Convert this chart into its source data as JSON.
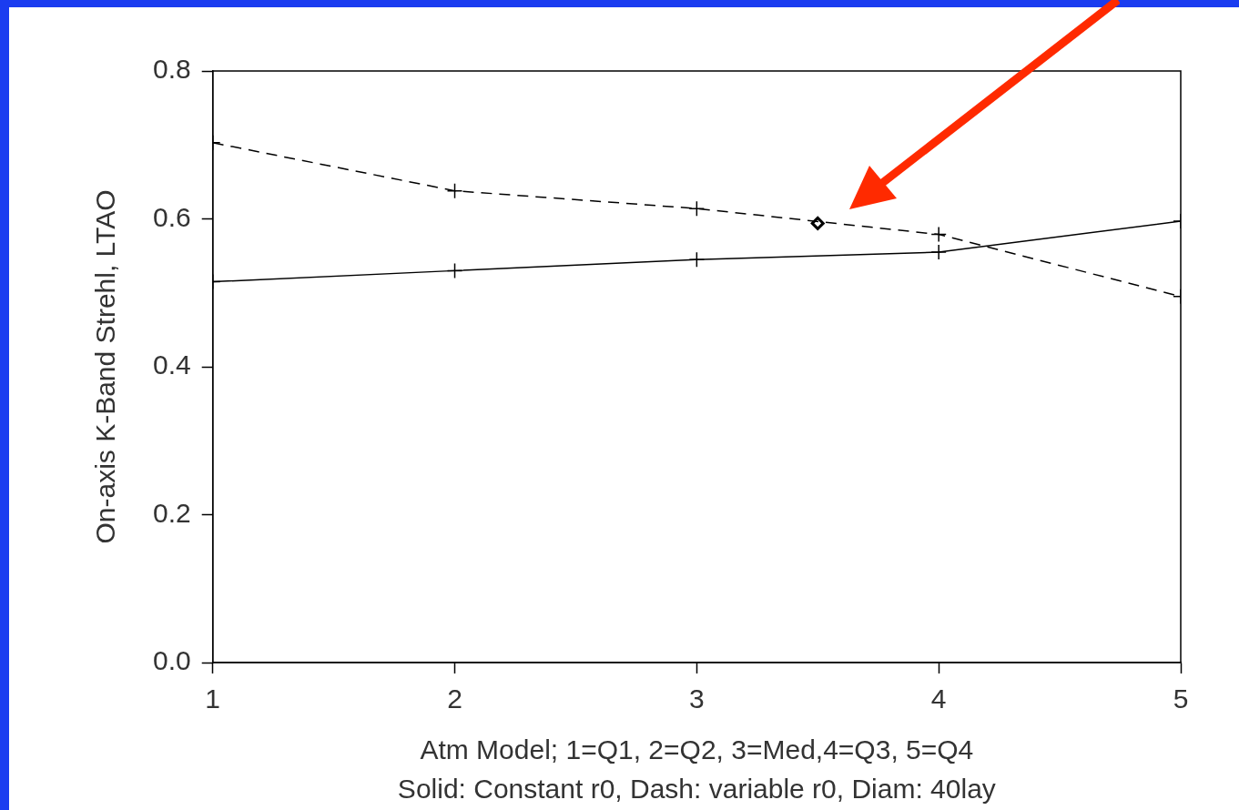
{
  "chart_data": {
    "type": "line",
    "ylabel": "On-axis K-Band Strehl, LTAO",
    "xlabel": "Atm Model; 1=Q1, 2=Q2, 3=Med,4=Q3, 5=Q4",
    "annotations": [
      "Solid: Constant r0, Dash: variable r0, Diam: 40lay"
    ],
    "xlim": [
      1,
      5
    ],
    "xticks": [
      1,
      2,
      3,
      4,
      5
    ],
    "ylim": [
      0,
      0.8
    ],
    "yticks": [
      {
        "value": 0,
        "label": "0.0"
      },
      {
        "value": 0.2,
        "label": "0.2"
      },
      {
        "value": 0.4,
        "label": "0.4"
      },
      {
        "value": 0.6,
        "label": "0.6"
      },
      {
        "value": 0.8,
        "label": "0.8"
      }
    ],
    "grid": false,
    "legend": false,
    "marker": "cross",
    "series": [
      {
        "color": "#000000",
        "line_style": "solid",
        "x": [
          1,
          2,
          3,
          4,
          5
        ],
        "values": [
          0.515,
          0.53,
          0.545,
          0.555,
          0.597
        ]
      },
      {
        "color": "#000000",
        "line_style": "dashed",
        "x": [
          1,
          2,
          3,
          4,
          5
        ],
        "values": [
          0.703,
          0.638,
          0.614,
          0.579,
          0.495
        ]
      },
      {
        "type": "scatter",
        "color": "#000000",
        "marker": "diamond",
        "x": [
          3.5
        ],
        "values": [
          0.594
        ]
      }
    ]
  }
}
